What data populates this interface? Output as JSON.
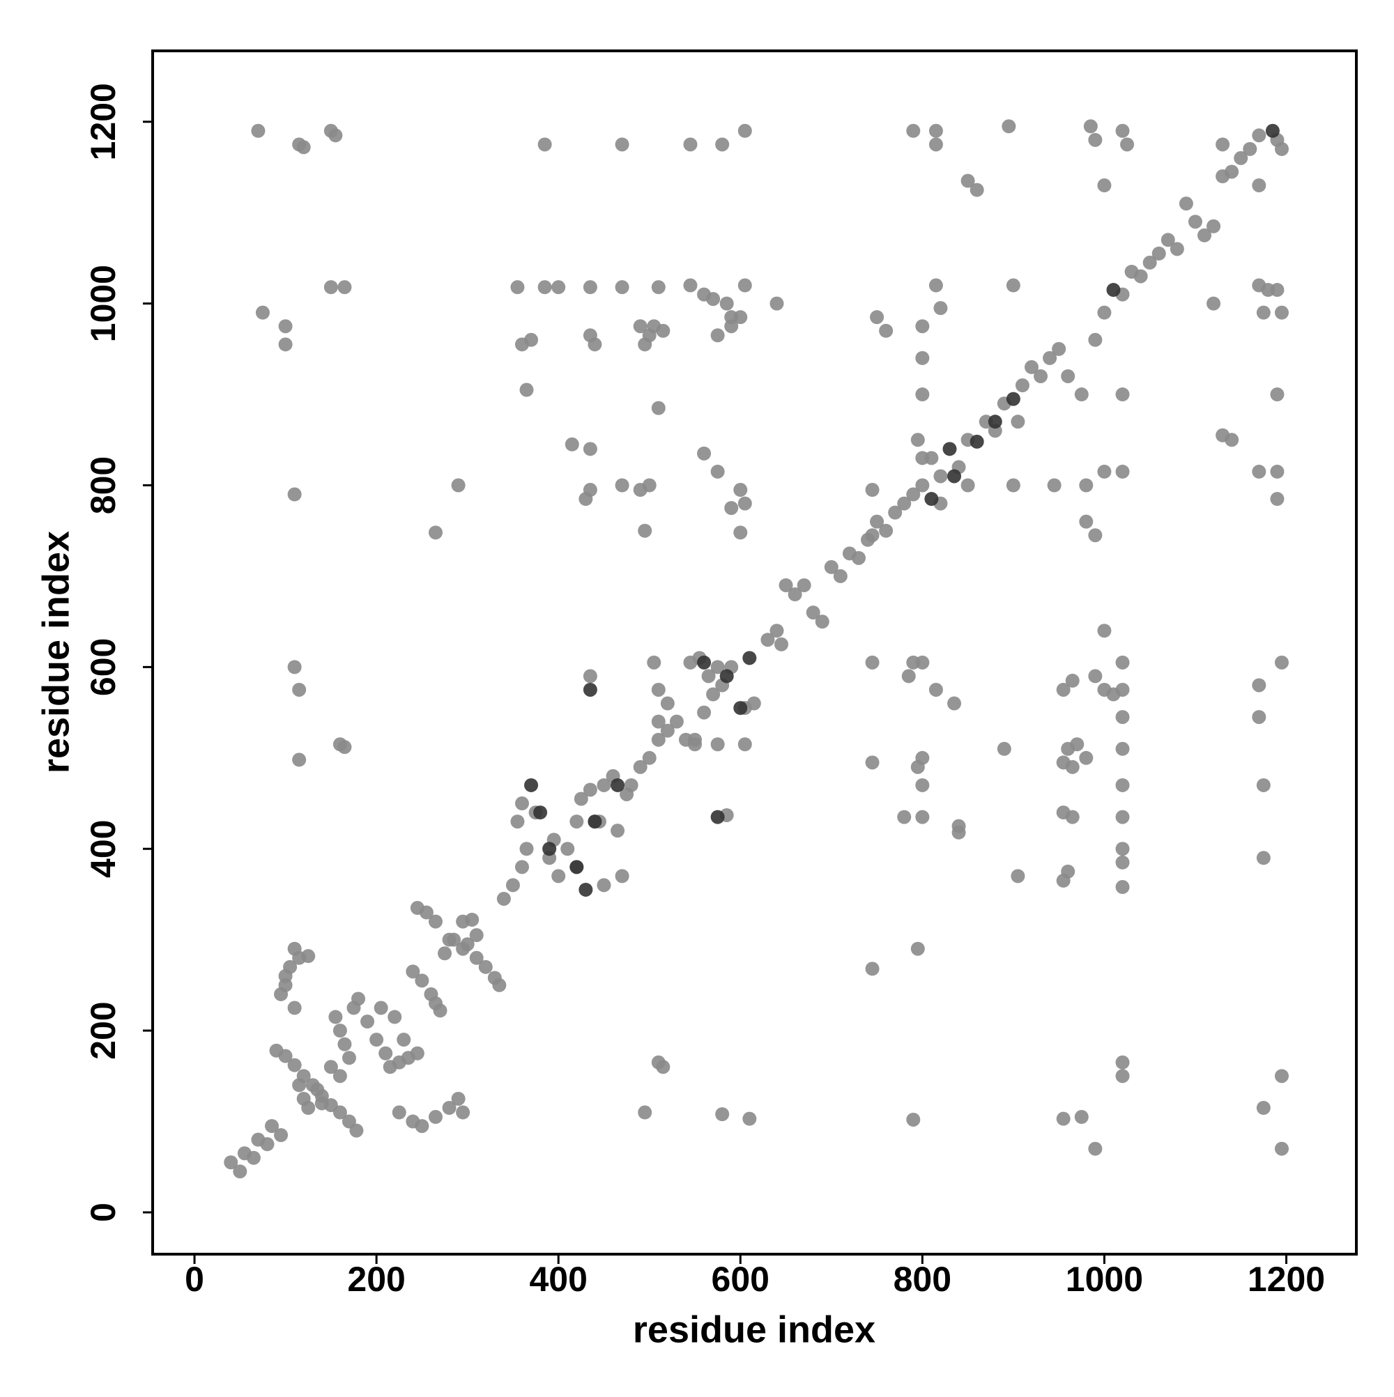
{
  "chart_data": {
    "type": "scatter",
    "xlabel": "residue index",
    "ylabel": "residue index",
    "xlim": [
      -46,
      1277
    ],
    "ylim": [
      -46,
      1278
    ],
    "xticks": [
      0,
      200,
      400,
      600,
      800,
      1000,
      1200
    ],
    "yticks": [
      0,
      200,
      400,
      600,
      800,
      1000,
      1200
    ],
    "series": [
      {
        "color": "#8a8a8a",
        "x": [
          40,
          50,
          55,
          65,
          70,
          80,
          85,
          95,
          90,
          100,
          110,
          120,
          130,
          140,
          150,
          160,
          170,
          178,
          120,
          125,
          135,
          140,
          115,
          95,
          100,
          105,
          110,
          115,
          125,
          100,
          110,
          155,
          160,
          165,
          170,
          175,
          180,
          150,
          160,
          190,
          200,
          210,
          215,
          205,
          220,
          230,
          235,
          245,
          225,
          240,
          250,
          260,
          265,
          270,
          245,
          255,
          265,
          280,
          295,
          310,
          320,
          330,
          335,
          275,
          285,
          295,
          305,
          310,
          300,
          225,
          240,
          250,
          265,
          280,
          290,
          295,
          110,
          115,
          115,
          160,
          165,
          110,
          100,
          100,
          75,
          150,
          165,
          70,
          115,
          150,
          155,
          120,
          265,
          290,
          340,
          350,
          360,
          365,
          375,
          390,
          395,
          400,
          410,
          420,
          440,
          450,
          360,
          355,
          420,
          425,
          435,
          450,
          460,
          465,
          475,
          480,
          490,
          470,
          445,
          500,
          510,
          520,
          530,
          540,
          550,
          510,
          520,
          505,
          510,
          545,
          555,
          565,
          570,
          575,
          580,
          590,
          605,
          615,
          560,
          575,
          605,
          550,
          585,
          435,
          630,
          640,
          645,
          650,
          660,
          670,
          680,
          690,
          700,
          710,
          720,
          730,
          740,
          750,
          760,
          770,
          780,
          790,
          800,
          810,
          820,
          840,
          850,
          870,
          890,
          905,
          880,
          850,
          820,
          795,
          800,
          910,
          920,
          930,
          940,
          950,
          960,
          975,
          990,
          1000,
          1020,
          1030,
          1040,
          1050,
          1060,
          1070,
          1080,
          1090,
          1100,
          1110,
          1120,
          1130,
          1140,
          1150,
          1160,
          1170,
          1190,
          1195,
          1130,
          1170,
          385,
          470,
          545,
          580,
          605,
          790,
          815,
          815,
          895,
          985,
          990,
          1020,
          1025,
          1000,
          850,
          860,
          355,
          385,
          400,
          435,
          470,
          510,
          545,
          560,
          570,
          585,
          590,
          600,
          605,
          640,
          575,
          590,
          360,
          370,
          435,
          440,
          490,
          500,
          495,
          505,
          515,
          365,
          510,
          415,
          435,
          435,
          430,
          470,
          490,
          500,
          495,
          560,
          575,
          590,
          600,
          605,
          600,
          750,
          760,
          800,
          815,
          820,
          800,
          800,
          900,
          900,
          945,
          980,
          1000,
          980,
          990,
          745,
          745,
          1120,
          1130,
          1140,
          1170,
          1180,
          1190,
          1175,
          1195,
          1190,
          1190,
          1190,
          1170,
          1020,
          1020,
          745,
          790,
          800,
          785,
          815,
          835,
          745,
          800,
          795,
          800,
          780,
          800,
          840,
          840,
          745,
          795,
          890,
          905,
          955,
          965,
          990,
          1000,
          1010,
          1020,
          1020,
          1020,
          960,
          970,
          955,
          965,
          980,
          955,
          965,
          960,
          955,
          1020,
          1020,
          1020,
          1020,
          1020,
          1020,
          1000,
          1170,
          1170,
          1175,
          1175,
          1195,
          1020,
          1020,
          1195,
          1175,
          1195,
          990,
          955,
          975,
          790,
          580,
          610,
          495,
          510,
          515
        ],
        "y": [
          55,
          45,
          65,
          60,
          80,
          75,
          95,
          85,
          178,
          172,
          162,
          150,
          140,
          128,
          118,
          110,
          100,
          90,
          125,
          115,
          135,
          120,
          140,
          240,
          260,
          270,
          290,
          280,
          282,
          250,
          225,
          215,
          200,
          185,
          170,
          225,
          235,
          160,
          150,
          210,
          190,
          175,
          160,
          225,
          215,
          190,
          170,
          175,
          165,
          265,
          255,
          240,
          230,
          222,
          335,
          330,
          320,
          300,
          290,
          280,
          270,
          258,
          250,
          285,
          300,
          320,
          322,
          305,
          295,
          110,
          100,
          95,
          105,
          115,
          125,
          110,
          600,
          575,
          498,
          515,
          512,
          790,
          955,
          975,
          990,
          1018,
          1018,
          1190,
          1175,
          1190,
          1185,
          1172,
          748,
          800,
          345,
          360,
          380,
          400,
          440,
          390,
          410,
          370,
          400,
          380,
          430,
          360,
          450,
          430,
          430,
          455,
          465,
          470,
          480,
          420,
          460,
          470,
          490,
          370,
          430,
          500,
          520,
          530,
          540,
          520,
          515,
          540,
          560,
          605,
          575,
          605,
          610,
          590,
          570,
          600,
          580,
          600,
          555,
          560,
          550,
          515,
          515,
          520,
          437,
          590,
          630,
          640,
          625,
          690,
          680,
          690,
          660,
          650,
          710,
          700,
          725,
          720,
          740,
          760,
          750,
          770,
          780,
          790,
          800,
          830,
          810,
          820,
          850,
          870,
          890,
          870,
          860,
          800,
          780,
          850,
          830,
          910,
          930,
          920,
          940,
          950,
          920,
          900,
          960,
          990,
          1010,
          1035,
          1030,
          1045,
          1055,
          1070,
          1060,
          1110,
          1090,
          1075,
          1085,
          1140,
          1145,
          1160,
          1170,
          1185,
          1180,
          1170,
          1175,
          1130,
          1175,
          1175,
          1175,
          1175,
          1190,
          1190,
          1190,
          1175,
          1195,
          1195,
          1180,
          1190,
          1175,
          1130,
          1135,
          1125,
          1018,
          1018,
          1018,
          1018,
          1018,
          1018,
          1020,
          1010,
          1005,
          1000,
          985,
          985,
          1020,
          1000,
          965,
          975,
          955,
          960,
          965,
          955,
          975,
          965,
          955,
          975,
          970,
          905,
          885,
          845,
          840,
          795,
          785,
          800,
          795,
          800,
          750,
          835,
          815,
          775,
          795,
          780,
          748,
          985,
          970,
          975,
          1020,
          995,
          940,
          900,
          1020,
          800,
          800,
          800,
          815,
          760,
          745,
          795,
          745,
          1000,
          855,
          850,
          1020,
          1015,
          1015,
          990,
          990,
          900,
          815,
          785,
          815,
          900,
          815,
          605,
          605,
          605,
          590,
          575,
          560,
          495,
          500,
          490,
          470,
          435,
          435,
          425,
          418,
          268,
          290,
          510,
          370,
          575,
          585,
          590,
          575,
          570,
          575,
          545,
          605,
          510,
          515,
          495,
          490,
          500,
          440,
          435,
          375,
          365,
          510,
          470,
          435,
          400,
          385,
          358,
          640,
          580,
          545,
          470,
          390,
          605,
          165,
          150,
          150,
          115,
          70,
          70,
          103,
          105,
          102,
          108,
          103,
          110,
          165,
          160
        ]
      },
      {
        "color": "#333333",
        "x": [
          380,
          390,
          420,
          430,
          440,
          465,
          560,
          585,
          600,
          610,
          1010,
          900,
          880,
          835,
          830,
          810,
          1185,
          370,
          435,
          575,
          860
        ],
        "y": [
          440,
          400,
          380,
          355,
          430,
          470,
          605,
          590,
          555,
          610,
          1015,
          895,
          870,
          810,
          840,
          785,
          1190,
          470,
          575,
          435,
          848
        ]
      }
    ]
  }
}
